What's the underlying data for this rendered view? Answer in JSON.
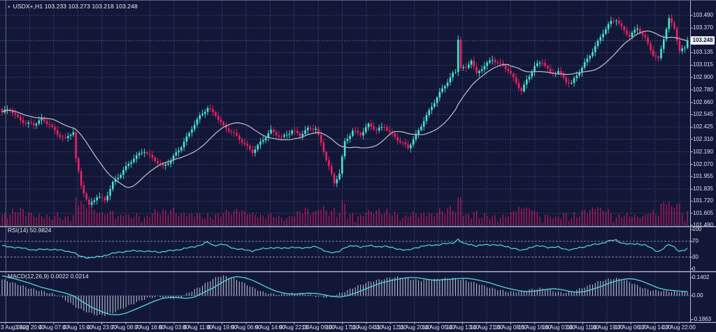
{
  "header": {
    "dropdown_icon": "▾",
    "symbol_period": "USDX+,H1",
    "ohlc": "103.233 103.273 103.218 103.248"
  },
  "main_pane": {
    "price_labels": [
      "103.490",
      "103.370",
      "103.250",
      "103.135",
      "103.015",
      "102.900",
      "102.780",
      "102.660",
      "102.545",
      "102.425",
      "102.310",
      "102.190",
      "102.070",
      "101.955",
      "101.835",
      "101.720",
      "101.605",
      "101.490"
    ],
    "current_price": "103.248"
  },
  "rsi_pane": {
    "label": "RSI(14) 50.9824",
    "levels": [
      {
        "text": "100",
        "value": 100
      },
      {
        "text": "70",
        "value": 70
      },
      {
        "text": "30",
        "value": 30
      },
      {
        "text": "0",
        "value": 0
      }
    ]
  },
  "macd_pane": {
    "label": "MACD(12,26,9) 0.0022 0.0214",
    "levels": [
      {
        "text": "0.1402",
        "value": 0.1402
      },
      {
        "text": "0.00",
        "value": 0
      },
      {
        "text": "-0.1863",
        "value": -0.1863
      }
    ]
  },
  "time_axis": {
    "labels": [
      "3 Aug 2023",
      "3 Aug 20:00",
      "4 Aug 07:00",
      "4 Aug 15:00",
      "4 Aug 23:00",
      "7 Aug 08:00",
      "7 Aug 16:00",
      "8 Aug 03:00",
      "8 Aug 11:00",
      "8 Aug 19:00",
      "9 Aug 06:00",
      "9 Aug 14:00",
      "9 Aug 22:00",
      "10 Aug 09:00",
      "10 Aug 17:00",
      "11 Aug 04:00",
      "11 Aug 12:00",
      "11 Aug 20:00",
      "14 Aug 05:00",
      "14 Aug 13:00",
      "14 Aug 21:00",
      "15 Aug 08:00",
      "15 Aug 16:00",
      "16 Aug 03:00",
      "16 Aug 11:00",
      "16 Aug 19:00",
      "17 Aug 06:00",
      "17 Aug 14:00",
      "17 Aug 22:00"
    ]
  },
  "colors": {
    "background": "#121738",
    "bull": "#45e6d2",
    "bear": "#ed2161",
    "volume": "#c11a5e",
    "ma_line": "#b4b6c2",
    "indicator_line": "#52d6e0",
    "histogram": "#c6cade",
    "grid": "#4c5380",
    "level_line": "#7c84a4",
    "separator": "#b8bcd0",
    "axis_text": "#dfe2ee",
    "price_tag_bg": "#f2f3f7",
    "price_tag_text": "#10143a"
  },
  "chart_data": {
    "type": "candlestick",
    "symbol": "USDX+",
    "timeframe": "H1",
    "current_ohlc": {
      "open": 103.233,
      "high": 103.273,
      "low": 103.218,
      "close": 103.248
    },
    "price_axis_range": [
      101.49,
      103.49
    ],
    "candle_count": 261,
    "close_anchors": [
      [
        0,
        102.56
      ],
      [
        3,
        102.6
      ],
      [
        6,
        102.52
      ],
      [
        9,
        102.46
      ],
      [
        12,
        102.44
      ],
      [
        15,
        102.5
      ],
      [
        18,
        102.46
      ],
      [
        21,
        102.36
      ],
      [
        24,
        102.3
      ],
      [
        27,
        102.38
      ],
      [
        28,
        102.12
      ],
      [
        30,
        101.88
      ],
      [
        33,
        101.68
      ],
      [
        36,
        101.76
      ],
      [
        39,
        101.72
      ],
      [
        42,
        101.9
      ],
      [
        46,
        102.02
      ],
      [
        50,
        102.12
      ],
      [
        54,
        102.2
      ],
      [
        58,
        102.12
      ],
      [
        61,
        102.04
      ],
      [
        64,
        102.1
      ],
      [
        68,
        102.25
      ],
      [
        72,
        102.42
      ],
      [
        75,
        102.52
      ],
      [
        78,
        102.6
      ],
      [
        81,
        102.55
      ],
      [
        84,
        102.44
      ],
      [
        88,
        102.35
      ],
      [
        92,
        102.26
      ],
      [
        95,
        102.2
      ],
      [
        98,
        102.28
      ],
      [
        102,
        102.38
      ],
      [
        106,
        102.33
      ],
      [
        110,
        102.4
      ],
      [
        113,
        102.34
      ],
      [
        116,
        102.4
      ],
      [
        119,
        102.42
      ],
      [
        121,
        102.28
      ],
      [
        124,
        102.05
      ],
      [
        126,
        101.88
      ],
      [
        128,
        101.98
      ],
      [
        130,
        102.28
      ],
      [
        133,
        102.4
      ],
      [
        136,
        102.36
      ],
      [
        139,
        102.44
      ],
      [
        142,
        102.39
      ],
      [
        145,
        102.44
      ],
      [
        148,
        102.36
      ],
      [
        151,
        102.28
      ],
      [
        154,
        102.22
      ],
      [
        157,
        102.35
      ],
      [
        160,
        102.5
      ],
      [
        163,
        102.62
      ],
      [
        166,
        102.74
      ],
      [
        169,
        102.86
      ],
      [
        171,
        102.94
      ],
      [
        172,
        102.96
      ],
      [
        173,
        103.28
      ],
      [
        174,
        103.0
      ],
      [
        176,
        102.98
      ],
      [
        178,
        103.06
      ],
      [
        180,
        102.92
      ],
      [
        183,
        103.02
      ],
      [
        186,
        103.08
      ],
      [
        189,
        103.02
      ],
      [
        192,
        102.96
      ],
      [
        195,
        102.85
      ],
      [
        197,
        102.78
      ],
      [
        199,
        102.88
      ],
      [
        202,
        103.0
      ],
      [
        205,
        103.04
      ],
      [
        208,
        102.94
      ],
      [
        211,
        102.97
      ],
      [
        214,
        102.86
      ],
      [
        216,
        102.83
      ],
      [
        219,
        102.95
      ],
      [
        222,
        103.08
      ],
      [
        225,
        103.2
      ],
      [
        228,
        103.32
      ],
      [
        231,
        103.42
      ],
      [
        233,
        103.45
      ],
      [
        235,
        103.38
      ],
      [
        238,
        103.3
      ],
      [
        241,
        103.36
      ],
      [
        244,
        103.26
      ],
      [
        247,
        103.12
      ],
      [
        249,
        103.08
      ],
      [
        251,
        103.28
      ],
      [
        253,
        103.45
      ],
      [
        255,
        103.36
      ],
      [
        257,
        103.14
      ],
      [
        259,
        103.18
      ],
      [
        260,
        103.25
      ]
    ],
    "indicators": {
      "rsi": {
        "period": 14,
        "current": 50.9824,
        "range": [
          0,
          100
        ],
        "levels": [
          70,
          30
        ],
        "anchors": [
          [
            0,
            58
          ],
          [
            6,
            54
          ],
          [
            12,
            48
          ],
          [
            18,
            50
          ],
          [
            24,
            46
          ],
          [
            27,
            42
          ],
          [
            29,
            33
          ],
          [
            33,
            28
          ],
          [
            36,
            30
          ],
          [
            40,
            36
          ],
          [
            44,
            42
          ],
          [
            48,
            45
          ],
          [
            52,
            46
          ],
          [
            56,
            44
          ],
          [
            60,
            43
          ],
          [
            64,
            46
          ],
          [
            68,
            50
          ],
          [
            72,
            55
          ],
          [
            76,
            62
          ],
          [
            78,
            68
          ],
          [
            80,
            60
          ],
          [
            84,
            62
          ],
          [
            88,
            52
          ],
          [
            92,
            48
          ],
          [
            95,
            46
          ],
          [
            98,
            50
          ],
          [
            102,
            54
          ],
          [
            106,
            52
          ],
          [
            110,
            55
          ],
          [
            113,
            52
          ],
          [
            116,
            55
          ],
          [
            119,
            56
          ],
          [
            121,
            50
          ],
          [
            124,
            43
          ],
          [
            126,
            40
          ],
          [
            128,
            45
          ],
          [
            130,
            55
          ],
          [
            133,
            58
          ],
          [
            136,
            56
          ],
          [
            139,
            59
          ],
          [
            142,
            56
          ],
          [
            145,
            58
          ],
          [
            148,
            53
          ],
          [
            151,
            50
          ],
          [
            154,
            47
          ],
          [
            157,
            54
          ],
          [
            160,
            58
          ],
          [
            163,
            60
          ],
          [
            166,
            62
          ],
          [
            169,
            64
          ],
          [
            171,
            66
          ],
          [
            173,
            75
          ],
          [
            175,
            64
          ],
          [
            178,
            62
          ],
          [
            180,
            58
          ],
          [
            183,
            61
          ],
          [
            186,
            62
          ],
          [
            189,
            59
          ],
          [
            192,
            56
          ],
          [
            195,
            50
          ],
          [
            197,
            46
          ],
          [
            199,
            52
          ],
          [
            202,
            57
          ],
          [
            205,
            58
          ],
          [
            208,
            54
          ],
          [
            211,
            55
          ],
          [
            214,
            50
          ],
          [
            216,
            48
          ],
          [
            219,
            54
          ],
          [
            222,
            58
          ],
          [
            225,
            62
          ],
          [
            228,
            66
          ],
          [
            231,
            72
          ],
          [
            233,
            73
          ],
          [
            235,
            66
          ],
          [
            238,
            62
          ],
          [
            241,
            64
          ],
          [
            244,
            60
          ],
          [
            247,
            50
          ],
          [
            249,
            44
          ],
          [
            251,
            52
          ],
          [
            253,
            62
          ],
          [
            255,
            56
          ],
          [
            257,
            44
          ],
          [
            259,
            47
          ],
          [
            260,
            51
          ]
        ]
      },
      "macd": {
        "fast": 12,
        "slow": 26,
        "signal": 9,
        "current_values": [
          0.0022,
          0.0214
        ],
        "axis_labels": [
          0.1402,
          0,
          -0.1863
        ],
        "signal_anchors": [
          [
            0,
            0.155
          ],
          [
            5,
            0.13
          ],
          [
            10,
            0.1
          ],
          [
            15,
            0.065
          ],
          [
            20,
            0.04
          ],
          [
            24,
            0.02
          ],
          [
            27,
            0
          ],
          [
            30,
            -0.04
          ],
          [
            34,
            -0.09
          ],
          [
            38,
            -0.125
          ],
          [
            41,
            -0.145
          ],
          [
            44,
            -0.148
          ],
          [
            47,
            -0.135
          ],
          [
            50,
            -0.11
          ],
          [
            54,
            -0.075
          ],
          [
            58,
            -0.04
          ],
          [
            61,
            -0.02
          ],
          [
            64,
            -0.012
          ],
          [
            67,
            -0.015
          ],
          [
            70,
            -0.02
          ],
          [
            73,
            -0.01
          ],
          [
            76,
            0.02
          ],
          [
            80,
            0.06
          ],
          [
            84,
            0.11
          ],
          [
            87,
            0.14
          ],
          [
            89,
            0.148
          ],
          [
            92,
            0.14
          ],
          [
            95,
            0.12
          ],
          [
            98,
            0.09
          ],
          [
            101,
            0.06
          ],
          [
            104,
            0.035
          ],
          [
            107,
            0.02
          ],
          [
            110,
            0.012
          ],
          [
            113,
            0.015
          ],
          [
            116,
            0.02
          ],
          [
            119,
            0.018
          ],
          [
            122,
            0.008
          ],
          [
            125,
            -0.005
          ],
          [
            128,
            -0.01
          ],
          [
            131,
            0
          ],
          [
            134,
            0.02
          ],
          [
            137,
            0.045
          ],
          [
            140,
            0.07
          ],
          [
            144,
            0.1
          ],
          [
            148,
            0.12
          ],
          [
            152,
            0.135
          ],
          [
            155,
            0.142
          ],
          [
            158,
            0.138
          ],
          [
            161,
            0.128
          ],
          [
            164,
            0.12
          ],
          [
            167,
            0.124
          ],
          [
            170,
            0.128
          ],
          [
            173,
            0.133
          ],
          [
            176,
            0.135
          ],
          [
            179,
            0.128
          ],
          [
            182,
            0.115
          ],
          [
            185,
            0.1
          ],
          [
            188,
            0.08
          ],
          [
            191,
            0.062
          ],
          [
            194,
            0.048
          ],
          [
            197,
            0.035
          ],
          [
            200,
            0.032
          ],
          [
            203,
            0.038
          ],
          [
            206,
            0.048
          ],
          [
            209,
            0.055
          ],
          [
            212,
            0.048
          ],
          [
            215,
            0.035
          ],
          [
            218,
            0.026
          ],
          [
            221,
            0.032
          ],
          [
            224,
            0.05
          ],
          [
            227,
            0.07
          ],
          [
            230,
            0.095
          ],
          [
            233,
            0.115
          ],
          [
            236,
            0.128
          ],
          [
            238,
            0.132
          ],
          [
            240,
            0.128
          ],
          [
            243,
            0.11
          ],
          [
            246,
            0.085
          ],
          [
            249,
            0.06
          ],
          [
            252,
            0.045
          ],
          [
            255,
            0.04
          ],
          [
            257,
            0.036
          ],
          [
            259,
            0.033
          ],
          [
            260,
            0.032
          ]
        ]
      }
    }
  }
}
